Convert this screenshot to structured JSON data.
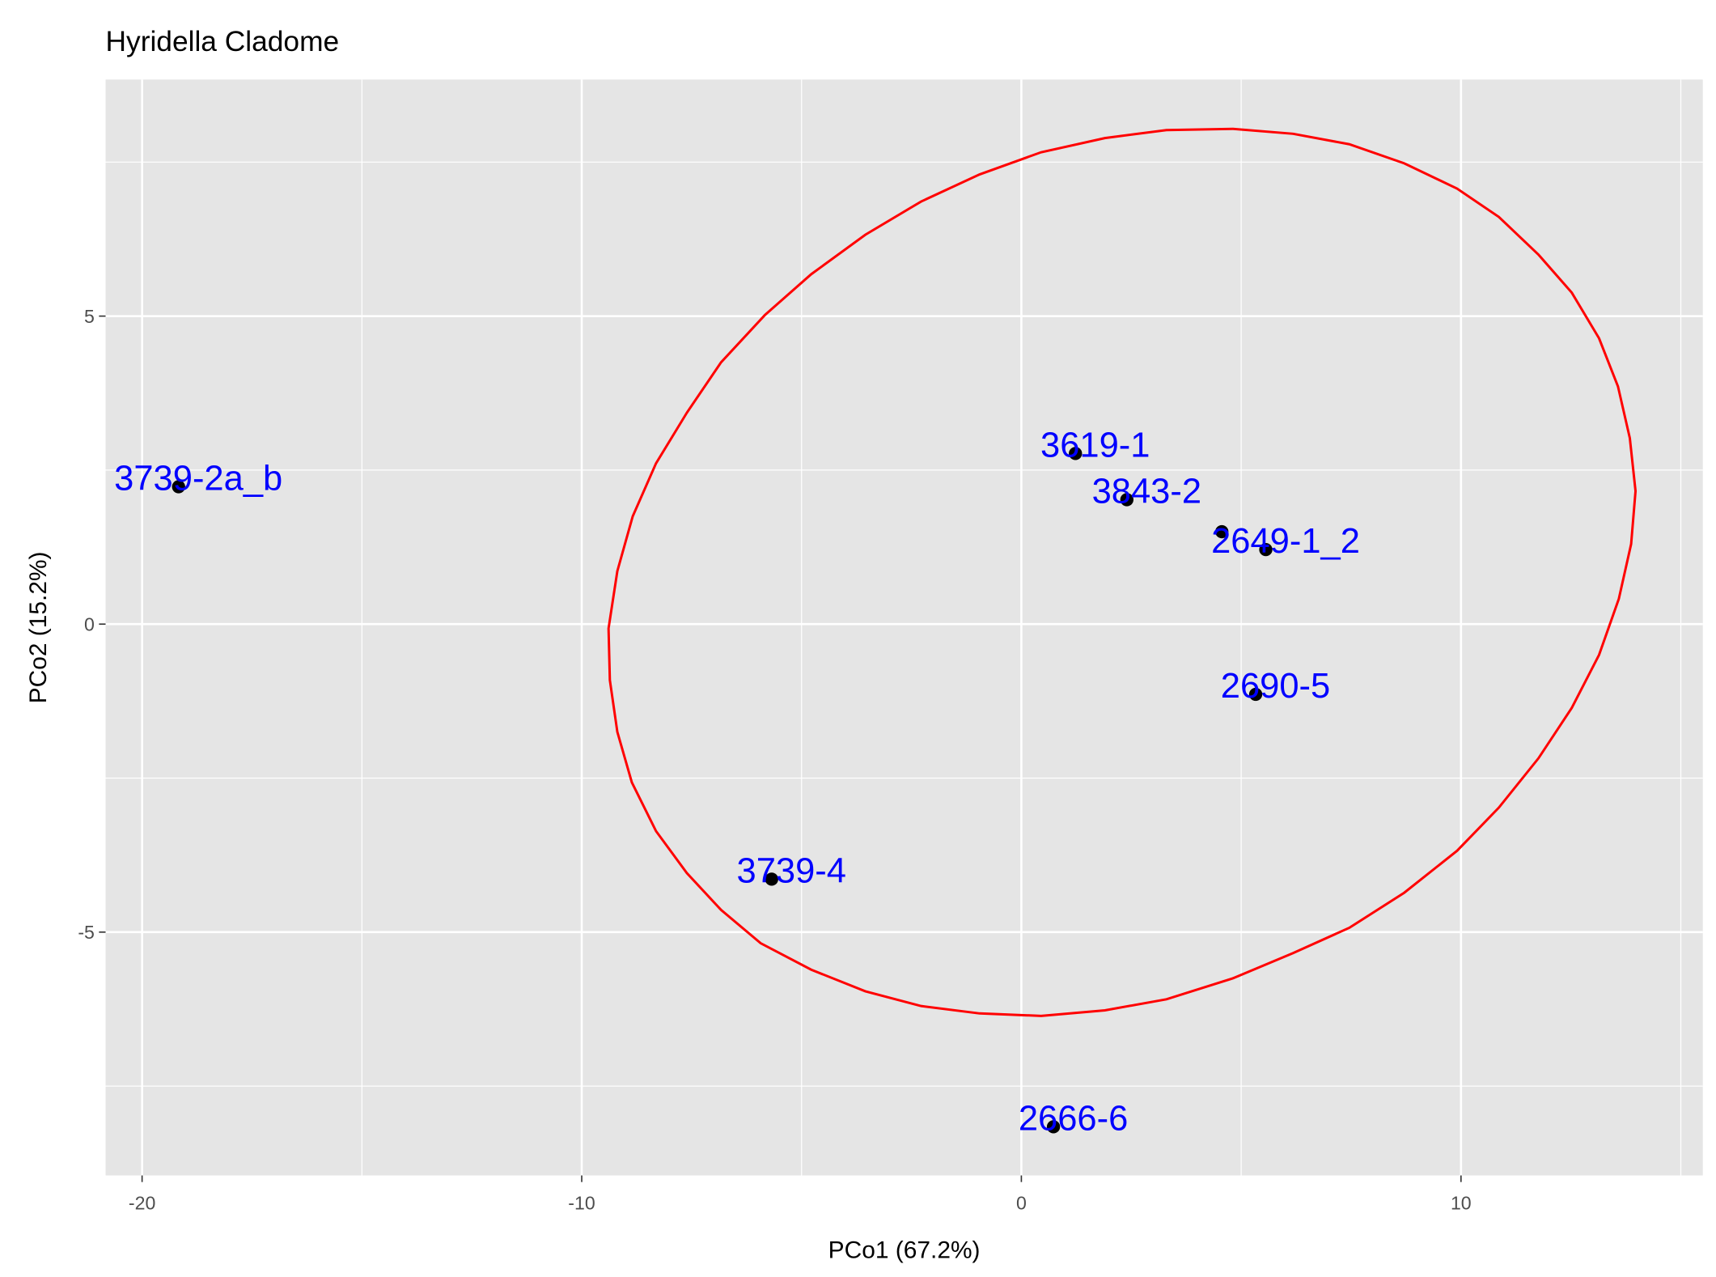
{
  "chart_data": {
    "type": "scatter",
    "title": "Hyridella Cladome",
    "xlabel": "PCo1 (67.2%)",
    "ylabel": "PCo2 (15.2%)",
    "xlim": [
      -20.83,
      15.5
    ],
    "ylim": [
      -8.95,
      8.84
    ],
    "x_ticks": [
      -20,
      -10,
      0,
      10
    ],
    "y_ticks": [
      -5,
      0,
      5
    ],
    "x_tick_labels": [
      "-20",
      "-10",
      "0",
      "10"
    ],
    "y_tick_labels": [
      "-5",
      "0",
      "5"
    ],
    "grid": true,
    "legend": "none",
    "colors": {
      "panel": "#e5e5e5",
      "grid": "#ffffff",
      "points": "#000000",
      "labels": "#0000ff",
      "ellipse": "#ff0000"
    },
    "points": [
      {
        "label": "3739-2a_b",
        "x": -19.17,
        "y": 2.23
      },
      {
        "label": "3619-1",
        "x": 1.23,
        "y": 2.77
      },
      {
        "label": "3843-2",
        "x": 2.4,
        "y": 2.02
      },
      {
        "label": "",
        "x": 4.56,
        "y": 1.5
      },
      {
        "label": "2649-1_2",
        "x": 5.56,
        "y": 1.21
      },
      {
        "label": "2690-5",
        "x": 5.33,
        "y": -1.14
      },
      {
        "label": "3739-4",
        "x": -5.68,
        "y": -4.14
      },
      {
        "label": "2666-6",
        "x": 0.73,
        "y": -8.16
      }
    ],
    "ellipse": [
      [
        4.81,
        8.04
      ],
      [
        6.18,
        7.96
      ],
      [
        7.46,
        7.79
      ],
      [
        8.71,
        7.48
      ],
      [
        9.91,
        7.07
      ],
      [
        10.86,
        6.61
      ],
      [
        11.76,
        6.0
      ],
      [
        12.52,
        5.38
      ],
      [
        13.14,
        4.64
      ],
      [
        13.57,
        3.86
      ],
      [
        13.84,
        3.02
      ],
      [
        13.97,
        2.16
      ],
      [
        13.87,
        1.3
      ],
      [
        13.59,
        0.41
      ],
      [
        13.14,
        -0.5
      ],
      [
        12.52,
        -1.36
      ],
      [
        11.76,
        -2.18
      ],
      [
        10.86,
        -2.98
      ],
      [
        9.91,
        -3.68
      ],
      [
        8.71,
        -4.36
      ],
      [
        7.46,
        -4.93
      ],
      [
        6.18,
        -5.34
      ],
      [
        4.81,
        -5.75
      ],
      [
        3.3,
        -6.09
      ],
      [
        1.9,
        -6.27
      ],
      [
        0.45,
        -6.36
      ],
      [
        -0.95,
        -6.32
      ],
      [
        -2.28,
        -6.2
      ],
      [
        -3.55,
        -5.96
      ],
      [
        -4.78,
        -5.61
      ],
      [
        -5.93,
        -5.18
      ],
      [
        -6.83,
        -4.64
      ],
      [
        -7.61,
        -4.04
      ],
      [
        -8.31,
        -3.36
      ],
      [
        -8.86,
        -2.57
      ],
      [
        -9.19,
        -1.75
      ],
      [
        -9.36,
        -0.91
      ],
      [
        -9.39,
        -0.07
      ],
      [
        -9.19,
        0.86
      ],
      [
        -8.84,
        1.75
      ],
      [
        -8.31,
        2.61
      ],
      [
        -7.61,
        3.43
      ],
      [
        -6.83,
        4.25
      ],
      [
        -5.83,
        5.02
      ],
      [
        -4.78,
        5.68
      ],
      [
        -3.55,
        6.32
      ],
      [
        -2.28,
        6.86
      ],
      [
        -0.95,
        7.3
      ],
      [
        0.45,
        7.66
      ],
      [
        1.9,
        7.89
      ],
      [
        3.3,
        8.02
      ]
    ]
  }
}
